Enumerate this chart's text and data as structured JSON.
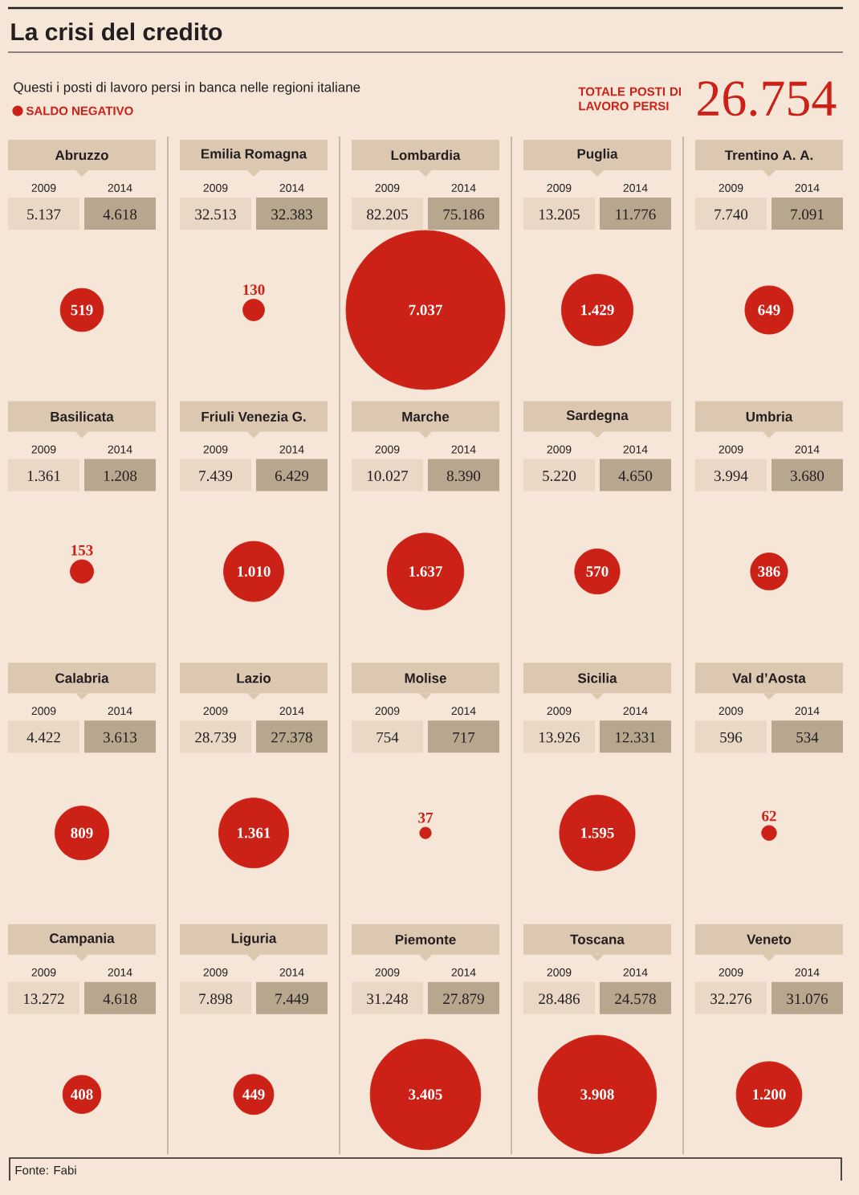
{
  "chart_data": [
    {
      "type": "other",
      "title": "La crisi del credito",
      "subtitle": "Questi i posti di lavoro persi in banca nelle regioni italiane",
      "categories": [
        "Abruzzo",
        "Emilia Romagna",
        "Lombardia",
        "Puglia",
        "Trentino A. A."
      ],
      "series": [
        {
          "name": "2009",
          "color": "#e9d8c6",
          "values": [
            5137,
            32513,
            82205,
            13205,
            7740
          ],
          "value_labels": [
            "5.137",
            "32.513",
            "82.205",
            "13.205",
            "7.740"
          ]
        },
        {
          "name": "2014",
          "color": "#b8a78f",
          "values": [
            4618,
            32383,
            75186,
            11776,
            7091
          ],
          "value_labels": [
            "4.618",
            "32.383",
            "75.186",
            "11.776",
            "7.091"
          ]
        },
        {
          "name": "SALDO NEGATIVO",
          "color": "#cc2116",
          "values": [
            519,
            130,
            7037,
            1429,
            649
          ],
          "value_labels": [
            "519",
            "130",
            "7.037",
            "1.429",
            "649"
          ]
        }
      ],
      "legend": "top left",
      "annotations": [
        "TOTALE POSTI DI LAVORO PERSI",
        "26.754"
      ]
    },
    {
      "type": "other",
      "categories": [
        "Basilicata",
        "Friuli Venezia G.",
        "Marche",
        "Sardegna",
        "Umbria"
      ],
      "series": [
        {
          "name": "2009",
          "color": "#e9d8c6",
          "values": [
            1361,
            7439,
            10027,
            5220,
            3994
          ],
          "value_labels": [
            "1.361",
            "7.439",
            "10.027",
            "5.220",
            "3.994"
          ]
        },
        {
          "name": "2014",
          "color": "#b8a78f",
          "values": [
            1208,
            6429,
            8390,
            4650,
            3680
          ],
          "value_labels": [
            "1.208",
            "6.429",
            "8.390",
            "4.650",
            "3.680"
          ]
        },
        {
          "color": "#cc2116",
          "values": [
            153,
            1010,
            1637,
            570,
            386
          ],
          "value_labels": [
            "153",
            "1.010",
            "1.637",
            "570",
            "386"
          ]
        }
      ]
    },
    {
      "type": "other",
      "categories": [
        "Calabria",
        "Lazio",
        "Molise",
        "Sicilia",
        "Val d’Aosta"
      ],
      "series": [
        {
          "name": "2009",
          "color": "#e9d8c6",
          "values": [
            4422,
            28739,
            754,
            13926,
            596
          ],
          "value_labels": [
            "4.422",
            "28.739",
            "754",
            "13.926",
            "596"
          ]
        },
        {
          "name": "2014",
          "color": "#b8a78f",
          "values": [
            3613,
            27378,
            717,
            12331,
            534
          ],
          "value_labels": [
            "3.613",
            "27.378",
            "717",
            "12.331",
            "534"
          ]
        },
        {
          "color": "#cc2116",
          "values": [
            809,
            1361,
            37,
            1595,
            62
          ],
          "value_labels": [
            "809",
            "1.361",
            "37",
            "1.595",
            "62"
          ]
        }
      ]
    },
    {
      "type": "other",
      "categories": [
        "Campania",
        "Liguria",
        "Piemonte",
        "Toscana",
        "Veneto"
      ],
      "series": [
        {
          "name": "2009",
          "color": "#e9d8c6",
          "values": [
            13272,
            7898,
            31248,
            28486,
            32276
          ],
          "value_labels": [
            "13.272",
            "7.898",
            "31.248",
            "28.486",
            "32.276"
          ]
        },
        {
          "name": "2014",
          "color": "#b8a78f",
          "values": [
            4618,
            7449,
            27879,
            24578,
            31076
          ],
          "value_labels": [
            "4.618",
            "7.449",
            "27.879",
            "24.578",
            "31.076"
          ]
        },
        {
          "color": "#cc2116",
          "values": [
            408,
            449,
            3405,
            3908,
            1200
          ],
          "value_labels": [
            "408",
            "449",
            "3.405",
            "3.908",
            "1.200"
          ]
        }
      ],
      "annotations": [
        "Fonte: Fabi"
      ]
    }
  ]
}
